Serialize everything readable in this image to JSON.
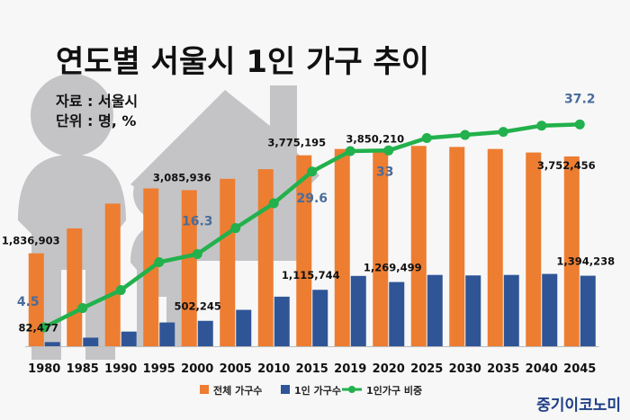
{
  "chart_data": {
    "type": "bar",
    "title": "연도별 서울시 1인 가구 추이",
    "note_lines": [
      "자료 : 서울시",
      "단위 : 명, %"
    ],
    "categories": [
      "1980",
      "1985",
      "1990",
      "1995",
      "2000",
      "2005",
      "2010",
      "2015",
      "2019",
      "2020",
      "2025",
      "2030",
      "2035",
      "2040",
      "2045"
    ],
    "series": [
      {
        "name": "전체 가구수",
        "type": "bar",
        "color": "#ed7d31",
        "values": [
          1836903,
          2330000,
          2820000,
          3120000,
          3085936,
          3310000,
          3500000,
          3775195,
          3900000,
          3850210,
          3960000,
          3940000,
          3900000,
          3830000,
          3752456
        ]
      },
      {
        "name": "1인 가구수",
        "type": "bar",
        "color": "#2f5597",
        "values": [
          82477,
          170000,
          290000,
          470000,
          502245,
          720000,
          980000,
          1115744,
          1390000,
          1269499,
          1410000,
          1400000,
          1410000,
          1430000,
          1394238
        ]
      },
      {
        "name": "1인가구 비중",
        "type": "line",
        "color": "#22b14c",
        "values": [
          4.5,
          7.6,
          10.5,
          15.0,
          16.3,
          20.5,
          24.5,
          29.6,
          32.9,
          33.0,
          35.0,
          35.5,
          36.0,
          37.0,
          37.2
        ]
      }
    ],
    "data_labels": [
      {
        "series": 0,
        "index": 0,
        "text": "1,836,903"
      },
      {
        "series": 0,
        "index": 4,
        "text": "3,085,936"
      },
      {
        "series": 0,
        "index": 7,
        "text": "3,775,195"
      },
      {
        "series": 0,
        "index": 9,
        "text": "3,850,210"
      },
      {
        "series": 0,
        "index": 14,
        "text": "3,752,456"
      },
      {
        "series": 1,
        "index": 0,
        "text": "82,477"
      },
      {
        "series": 1,
        "index": 4,
        "text": "502,245"
      },
      {
        "series": 1,
        "index": 7,
        "text": "1,115,744"
      },
      {
        "series": 1,
        "index": 9,
        "text": "1,269,499"
      },
      {
        "series": 1,
        "index": 14,
        "text": "1,394,238"
      },
      {
        "series": 2,
        "index": 0,
        "text": "4.5"
      },
      {
        "series": 2,
        "index": 4,
        "text": "16.3"
      },
      {
        "series": 2,
        "index": 7,
        "text": "29.6"
      },
      {
        "series": 2,
        "index": 9,
        "text": "33"
      },
      {
        "series": 2,
        "index": 14,
        "text": "37.2"
      }
    ],
    "legend_position": "bottom",
    "gridlines": false
  },
  "brand": "중기이코노미",
  "colors": {
    "silhouette": "#c4c4c6",
    "label_blue": "#4a6c9b",
    "text": "#111111",
    "brand": "#1f3f86"
  }
}
